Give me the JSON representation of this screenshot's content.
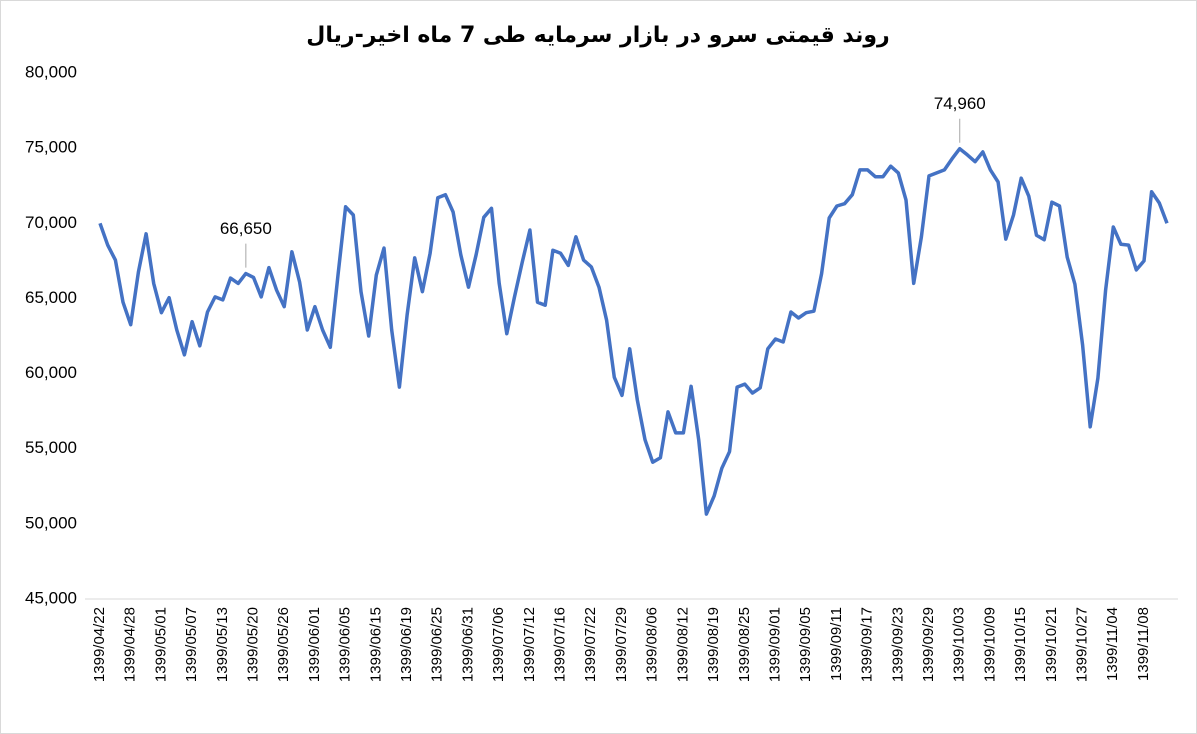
{
  "chart_data": {
    "type": "line",
    "title": "روند قیمتی سرو در بازار سرمایه طی 7 ماه اخیر-ریال",
    "color": "#4472c4",
    "categories": [
      "1399/04/22",
      null,
      null,
      null,
      "1399/04/28",
      null,
      null,
      null,
      "1399/05/01",
      null,
      null,
      null,
      "1399/05/07",
      null,
      null,
      null,
      "1399/05/13",
      null,
      null,
      null,
      "1399/05/20",
      null,
      null,
      null,
      "1399/05/26",
      null,
      null,
      null,
      "1399/06/01",
      null,
      null,
      null,
      "1399/06/05",
      null,
      null,
      null,
      "1399/06/15",
      null,
      null,
      null,
      "1399/06/19",
      null,
      null,
      null,
      "1399/06/25",
      null,
      null,
      null,
      "1399/06/31",
      null,
      null,
      null,
      "1399/07/06",
      null,
      null,
      null,
      "1399/07/12",
      null,
      null,
      null,
      "1399/07/16",
      null,
      null,
      null,
      "1399/07/22",
      null,
      null,
      null,
      "1399/07/29",
      null,
      null,
      null,
      "1399/08/06",
      null,
      null,
      null,
      "1399/08/12",
      null,
      null,
      null,
      "1399/08/19",
      null,
      null,
      null,
      "1399/08/25",
      null,
      null,
      null,
      "1399/09/01",
      null,
      null,
      null,
      "1399/09/05",
      null,
      null,
      null,
      "1399/09/11",
      null,
      null,
      null,
      "1399/09/17",
      null,
      null,
      null,
      "1399/09/23",
      null,
      null,
      null,
      "1399/09/29",
      null,
      null,
      null,
      "1399/10/03",
      null,
      null,
      null,
      "1399/10/09",
      null,
      null,
      null,
      "1399/10/15",
      null,
      null,
      null,
      "1399/10/21",
      null,
      null,
      null,
      "1399/10/27",
      null,
      null,
      null,
      "1399/11/04",
      null,
      null,
      null,
      "1399/11/08",
      null,
      null,
      null
    ],
    "values": [
      70000,
      68550,
      67550,
      64750,
      63250,
      66750,
      69300,
      66000,
      64050,
      65050,
      62900,
      61250,
      63450,
      61850,
      64100,
      65100,
      64900,
      66350,
      66000,
      66650,
      66400,
      65100,
      67050,
      65550,
      64450,
      68100,
      66100,
      62900,
      64450,
      62900,
      61750,
      66550,
      71100,
      70550,
      65450,
      62500,
      66550,
      68350,
      62900,
      59100,
      63900,
      67700,
      65450,
      68000,
      71700,
      71900,
      70750,
      67900,
      65750,
      67900,
      70400,
      71000,
      66000,
      62650,
      65100,
      67400,
      69550,
      64750,
      64550,
      68200,
      68000,
      67200,
      69100,
      67550,
      67100,
      65750,
      63550,
      59750,
      58550,
      61650,
      58250,
      55600,
      54100,
      54400,
      57450,
      56050,
      56050,
      59150,
      55600,
      50650,
      51850,
      53700,
      54800,
      59100,
      59300,
      58700,
      59050,
      61650,
      62300,
      62100,
      64100,
      63700,
      64050,
      64150,
      66650,
      70350,
      71150,
      71300,
      71900,
      73550,
      73550,
      73100,
      73100,
      73800,
      73350,
      71550,
      66000,
      69100,
      73150,
      73350,
      73550,
      74300,
      74960,
      74550,
      74100,
      74750,
      73550,
      72750,
      68950,
      70550,
      73000,
      71800,
      69200,
      68900,
      71400,
      71150,
      67750,
      65950,
      61900,
      56450,
      59700,
      65550,
      69750,
      68600,
      68550,
      66900,
      67500,
      72100,
      71350,
      70000
    ],
    "value_labels": [
      null,
      null,
      null,
      null,
      null,
      null,
      null,
      null,
      null,
      null,
      null,
      null,
      null,
      null,
      null,
      null,
      null,
      null,
      null,
      "66,650",
      null,
      null,
      null,
      null,
      null,
      null,
      null,
      null,
      null,
      null,
      null,
      null,
      null,
      null,
      null,
      null,
      null,
      null,
      null,
      null,
      null,
      null,
      null,
      null,
      null,
      null,
      null,
      null,
      null,
      null,
      null,
      null,
      null,
      null,
      null,
      null,
      null,
      null,
      null,
      null,
      null,
      null,
      null,
      null,
      null,
      null,
      null,
      null,
      null,
      null,
      null,
      null,
      null,
      null,
      null,
      null,
      null,
      null,
      null,
      null,
      null,
      null,
      null,
      null,
      null,
      null,
      null,
      null,
      null,
      null,
      null,
      null,
      null,
      null,
      null,
      null,
      null,
      null,
      null,
      null,
      null,
      null,
      null,
      null,
      null,
      null,
      null,
      null,
      null,
      null,
      null,
      null,
      "74,960",
      null,
      null,
      null,
      null,
      null,
      null,
      null,
      null,
      null,
      null,
      null,
      null,
      null,
      null,
      null,
      null,
      null,
      null,
      null,
      null,
      null,
      null,
      null,
      null,
      null,
      null,
      null
    ],
    "ylim": [
      45000,
      80000
    ],
    "yticks": [
      {
        "value": 45000,
        "label": "45,000"
      },
      {
        "value": 50000,
        "label": "50,000"
      },
      {
        "value": 55000,
        "label": "55,000"
      },
      {
        "value": 60000,
        "label": "60,000"
      },
      {
        "value": 65000,
        "label": "65,000"
      },
      {
        "value": 70000,
        "label": "70,000"
      },
      {
        "value": 75000,
        "label": "75,000"
      },
      {
        "value": 80000,
        "label": "80,000"
      }
    ],
    "grid": false
  }
}
